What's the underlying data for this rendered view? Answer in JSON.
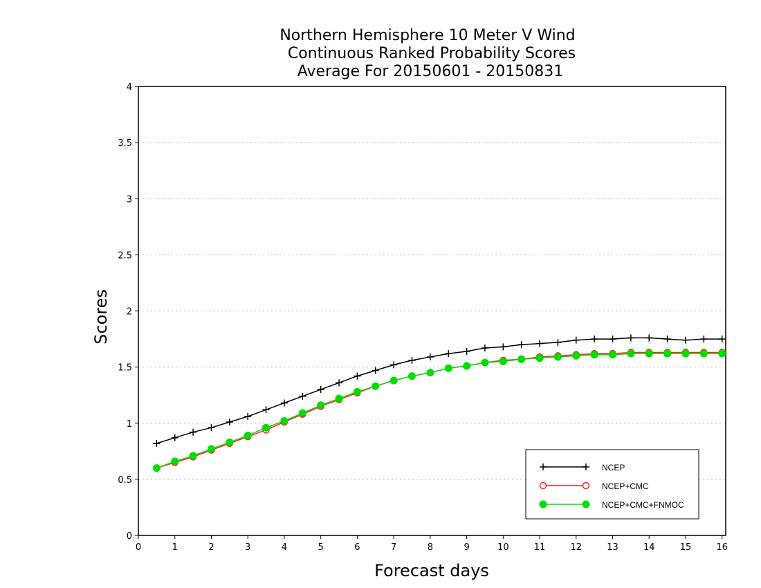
{
  "chart_data": {
    "type": "line",
    "title": [
      "Northern Hemisphere 10 Meter V Wind",
      "Continuous Ranked Probability Scores",
      "Average For 20150601 - 20150831"
    ],
    "xlabel": "Forecast days",
    "ylabel": "Scores",
    "xlim": [
      0,
      16.1
    ],
    "ylim": [
      0,
      4
    ],
    "xticks": [
      "0",
      "1",
      "2",
      "3",
      "4",
      "5",
      "6",
      "7",
      "8",
      "9",
      "10",
      "11",
      "12",
      "13",
      "14",
      "15",
      "16"
    ],
    "yticks": [
      0,
      0.5,
      1,
      1.5,
      2,
      2.5,
      3,
      3.5,
      4
    ],
    "ytick_labels": [
      "0",
      "0.5",
      "1",
      "1.5",
      "2",
      "2.5",
      "3",
      "3.5",
      "4"
    ],
    "grid": "horizontal dotted",
    "legend_placement": "bottom-right",
    "x": [
      0.5,
      1,
      1.5,
      2,
      2.5,
      3,
      3.5,
      4,
      4.5,
      5,
      5.5,
      6,
      6.5,
      7,
      7.5,
      8,
      8.5,
      9,
      9.5,
      10,
      10.5,
      11,
      11.5,
      12,
      12.5,
      13,
      13.5,
      14,
      14.5,
      15,
      15.5,
      16
    ],
    "series": [
      {
        "name": "NCEP",
        "color": "#000000",
        "marker": "plus",
        "values": [
          0.82,
          0.87,
          0.92,
          0.96,
          1.01,
          1.06,
          1.12,
          1.18,
          1.24,
          1.3,
          1.36,
          1.42,
          1.47,
          1.52,
          1.56,
          1.59,
          1.62,
          1.64,
          1.67,
          1.68,
          1.7,
          1.71,
          1.72,
          1.74,
          1.75,
          1.75,
          1.76,
          1.76,
          1.75,
          1.74,
          1.75,
          1.75
        ]
      },
      {
        "name": "NCEP+CMC",
        "color": "#ff2020",
        "marker": "open-circle",
        "values": [
          0.6,
          0.65,
          0.7,
          0.76,
          0.82,
          0.88,
          0.94,
          1.01,
          1.08,
          1.15,
          1.21,
          1.27,
          1.33,
          1.38,
          1.42,
          1.45,
          1.49,
          1.51,
          1.54,
          1.56,
          1.57,
          1.59,
          1.6,
          1.61,
          1.62,
          1.62,
          1.63,
          1.63,
          1.63,
          1.63,
          1.63,
          1.63
        ]
      },
      {
        "name": "NCEP+CMC+FNMOC",
        "color": "#00dd00",
        "marker": "filled-circle",
        "values": [
          0.6,
          0.66,
          0.71,
          0.77,
          0.83,
          0.89,
          0.96,
          1.02,
          1.09,
          1.16,
          1.22,
          1.28,
          1.33,
          1.38,
          1.42,
          1.45,
          1.49,
          1.51,
          1.54,
          1.55,
          1.57,
          1.58,
          1.59,
          1.6,
          1.61,
          1.61,
          1.62,
          1.62,
          1.62,
          1.62,
          1.62,
          1.62
        ]
      }
    ]
  }
}
